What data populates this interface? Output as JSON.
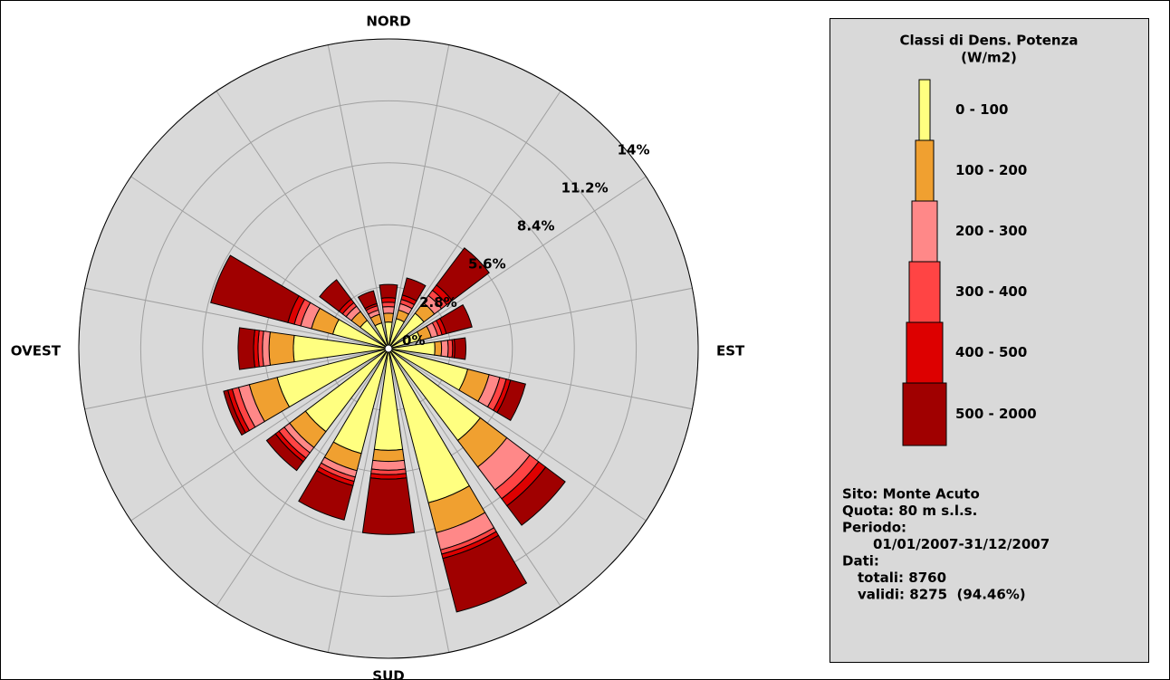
{
  "chart_data": {
    "type": "windrose",
    "categories": [
      "NORD",
      null,
      null,
      null,
      "EST",
      null,
      null,
      null,
      "SUD",
      null,
      null,
      null,
      "OVEST",
      null,
      null,
      null
    ],
    "ylim": [
      0,
      14
    ],
    "yticks": [
      {
        "value": 0,
        "label": "0%"
      },
      {
        "value": 2.8,
        "label": "2.8%"
      },
      {
        "value": 5.6,
        "label": "5.6%"
      },
      {
        "value": 8.4,
        "label": "8.4%"
      },
      {
        "value": 11.2,
        "label": "11.2%"
      },
      {
        "value": 14,
        "label": "14%"
      }
    ],
    "grid": true,
    "legend_title": [
      "Classi di Dens. Potenza",
      "(W/m2)"
    ],
    "series": [
      {
        "name": "0 - 100",
        "color": "#ffff80",
        "values": [
          1.2,
          1.4,
          2.0,
          1.5,
          2.1,
          3.7,
          5.2,
          7.2,
          4.6,
          4.9,
          4.7,
          5.2,
          4.3,
          2.6,
          1.6,
          1.2
        ]
      },
      {
        "name": "100 - 200",
        "color": "#f0a030",
        "values": [
          0.4,
          0.4,
          0.6,
          0.5,
          0.3,
          1.0,
          1.5,
          1.4,
          0.5,
          0.8,
          0.9,
          1.3,
          1.1,
          1.0,
          0.5,
          0.4
        ]
      },
      {
        "name": "200 - 300",
        "color": "#ff8888",
        "values": [
          0.3,
          0.3,
          0.4,
          0.3,
          0.3,
          0.5,
          1.3,
          0.8,
          0.4,
          0.3,
          0.3,
          0.5,
          0.3,
          0.5,
          0.3,
          0.2
        ]
      },
      {
        "name": "300 - 400",
        "color": "#ff4444",
        "values": [
          0.2,
          0.2,
          0.3,
          0.2,
          0.2,
          0.3,
          0.5,
          0.2,
          0.2,
          0.2,
          0.3,
          0.3,
          0.2,
          0.3,
          0.2,
          0.2
        ]
      },
      {
        "name": "400 - 500",
        "color": "#dd0000",
        "values": [
          0.2,
          0.2,
          0.3,
          0.2,
          0.1,
          0.2,
          0.4,
          0.2,
          0.2,
          0.2,
          0.2,
          0.2,
          0.2,
          0.3,
          0.2,
          0.1
        ]
      },
      {
        "name": "500 - 2000",
        "color": "#a00000",
        "values": [
          0.6,
          0.8,
          2.1,
          1.2,
          0.5,
          0.7,
          1.1,
          2.5,
          2.5,
          1.6,
          0.5,
          0.2,
          0.7,
          3.6,
          1.1,
          0.6
        ]
      }
    ]
  },
  "info": [
    "Sito: Monte Acuto",
    "Quota: 80 m s.l.s.",
    "Periodo:",
    "01/01/2007-31/12/2007",
    "Dati:",
    "totali: 8760",
    "validi: 8275  (94.46%)"
  ]
}
